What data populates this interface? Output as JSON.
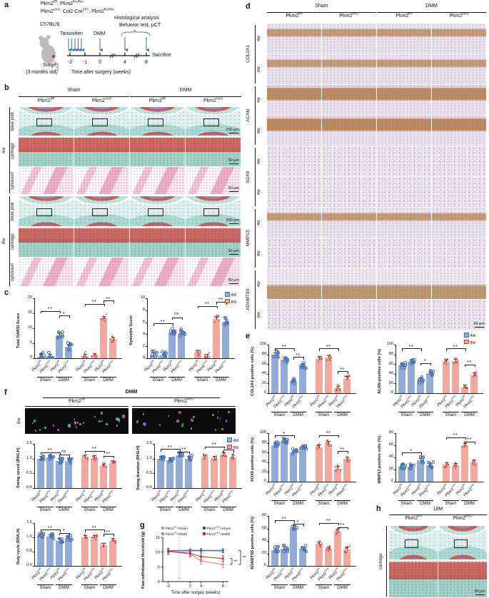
{
  "colors": {
    "blue_fill": "#93abd7",
    "blue_pt": "#4a72b8",
    "red_fill": "#f2a79f",
    "red_pt": "#d93a30",
    "arrow_blue": "#4a74b8",
    "series_flfl_sham": "#7fa8dc",
    "series_icko_sham": "#2f54a0",
    "series_flfl_dmm": "#e8736b",
    "series_icko_dmm": "#c1272d"
  },
  "legend": {
    "w4": "4W",
    "w8": "8W"
  },
  "bar_xlabels": [
    "Pkm2^fl/fl",
    "Pkm2^icKO",
    "Pkm2^fl/fl",
    "Pkm2^icKO",
    "Pkm2^fl/fl",
    "Pkm2^icKO",
    "Pkm2^fl/fl",
    "Pkm2^icKO"
  ],
  "bar_groups": [
    {
      "t": "Sham",
      "a": 0,
      "b": 1
    },
    {
      "t": "DMM",
      "a": 2,
      "b": 3
    },
    {
      "t": "Sham",
      "a": 4,
      "b": 5
    },
    {
      "t": "DMM",
      "a": 6,
      "b": 7
    }
  ],
  "panels": {
    "a": {
      "label": "a",
      "line1": "Pkm2^fl/fl^: Pkm2^flox/flox",
      "line2": "Pkm2^icKO^: Col2-Cre^ERT^; Pkm2^flox/flox",
      "strain": "C57BL/6",
      "tamoxifen": "Tamoxifen",
      "dmm": "DMM",
      "hist": "Histological analysis",
      "behavior": "Behavior test, μCT",
      "sacrifice": "Sacrifice",
      "surgery": "Surgey",
      "age": "(3 months old)",
      "axis": "Time after surgery (weeks)",
      "ticks": [
        "-2",
        "-1",
        "0",
        "4",
        "8"
      ]
    },
    "b": {
      "label": "b",
      "groups": [
        "Sham",
        "DMM"
      ],
      "cols": [
        "Pkm2^fl/fl",
        "Pkm2^icKO",
        "Pkm2^fl/fl",
        "Pkm2^icKO"
      ],
      "times": [
        "4w",
        "8w"
      ],
      "rows": [
        "knee joint",
        "cartilage",
        "synovium"
      ],
      "scales": [
        "250 μm",
        "50 μm",
        "50 μm"
      ]
    },
    "c": {
      "label": "c"
    },
    "d": {
      "label": "d",
      "groups": [
        "Sham",
        "DMM"
      ],
      "cols": [
        "Pkm2^fl/fl",
        "Pkm2^icKO",
        "Pkm2^fl/fl",
        "Pkm2^icKO"
      ],
      "markers": [
        "COL2A1",
        "ACAN",
        "SOX9",
        "MMP13",
        "ADAMTS5"
      ],
      "times": [
        "4w",
        "8w"
      ],
      "scale": "50 μm"
    },
    "e": {
      "label": "e"
    },
    "f": {
      "label": "f",
      "header": "DMM",
      "cols": [
        "Pkm2^fl/fl",
        "Pkm2^icKO"
      ],
      "time": "8w"
    },
    "g": {
      "label": "g",
      "dmm": "DMM"
    },
    "h": {
      "label": "h",
      "header": "18M",
      "cols": [
        "Pkm2^fl/fl",
        "Pkm2^icKO"
      ],
      "row": "cartilage",
      "scale": "50 μm"
    }
  },
  "chart_data": [
    {
      "type": "bar",
      "ylabel": "Total OARSI Score",
      "ylim": [
        0,
        20
      ],
      "yticks": [
        "0",
        "5",
        "10",
        "15",
        "20"
      ],
      "values": [
        0.5,
        0.6,
        7.7,
        3.8,
        0.7,
        0.9,
        13.3,
        6.4
      ],
      "colors": [
        "b",
        "b",
        "b",
        "b",
        "r",
        "r",
        "r",
        "r"
      ],
      "sig": [
        {
          "a": 0,
          "b": 2,
          "t": "**",
          "y": 15.8
        },
        {
          "a": 2,
          "b": 3,
          "t": "*",
          "y": 14.2
        },
        {
          "a": 4,
          "b": 6,
          "t": "**",
          "y": 18.2
        },
        {
          "a": 6,
          "b": 7,
          "t": "**",
          "y": 19.2
        }
      ]
    },
    {
      "type": "bar",
      "ylabel": "Synovitis Score",
      "ylim": [
        0,
        10
      ],
      "yticks": [
        "0",
        "2",
        "4",
        "6",
        "8",
        "10"
      ],
      "values": [
        0.5,
        0.5,
        4.3,
        4.2,
        0.9,
        0.3,
        6.5,
        6.1
      ],
      "colors": [
        "b",
        "b",
        "b",
        "b",
        "r",
        "r",
        "r",
        "b"
      ],
      "sig": [
        {
          "a": 0,
          "b": 2,
          "t": "**",
          "y": 5.8
        },
        {
          "a": 2,
          "b": 3,
          "t": "ns",
          "y": 6.8
        },
        {
          "a": 4,
          "b": 6,
          "t": "**",
          "y": 8.7
        },
        {
          "a": 6,
          "b": 7,
          "t": "ns",
          "y": 9.4
        }
      ]
    },
    {
      "type": "bar",
      "ylabel": "Swing speed (RH/LH)",
      "ylim": [
        0,
        1.5
      ],
      "yticks": [
        "0.0",
        "0.5",
        "1.0",
        "1.5"
      ],
      "values": [
        1.0,
        1.05,
        0.92,
        0.93,
        1.05,
        1.02,
        0.75,
        0.85
      ],
      "colors": [
        "b",
        "b",
        "b",
        "b",
        "r",
        "r",
        "r",
        "r"
      ],
      "sig": [
        {
          "a": 0,
          "b": 2,
          "t": "**",
          "y": 1.22
        },
        {
          "a": 2,
          "b": 3,
          "t": "ns",
          "y": 1.13
        },
        {
          "a": 4,
          "b": 6,
          "t": "**",
          "y": 1.27
        },
        {
          "a": 6,
          "b": 7,
          "t": "**",
          "y": 1.1
        }
      ]
    },
    {
      "type": "bar",
      "ylabel": "Swing duration (RH/LH)",
      "ylim": [
        0,
        1.5
      ],
      "yticks": [
        "0.0",
        "0.5",
        "1.0",
        "1.5"
      ],
      "values": [
        1.0,
        0.95,
        1.12,
        1.0,
        1.05,
        1.0,
        1.13,
        1.05
      ],
      "colors": [
        "b",
        "b",
        "b",
        "b",
        "r",
        "r",
        "r",
        "r"
      ],
      "sig": [
        {
          "a": 0,
          "b": 2,
          "t": "**",
          "y": 1.32
        },
        {
          "a": 2,
          "b": 3,
          "t": "**",
          "y": 1.24
        },
        {
          "a": 4,
          "b": 6,
          "t": "**",
          "y": 1.41
        },
        {
          "a": 6,
          "b": 7,
          "t": "*",
          "y": 1.3
        }
      ]
    },
    {
      "type": "bar",
      "ylabel": "Duty cycle (RH/LH)",
      "ylim": [
        0,
        1.5
      ],
      "yticks": [
        "0.0",
        "0.5",
        "1.0",
        "1.5"
      ],
      "values": [
        1.05,
        1.02,
        0.88,
        0.97,
        1.0,
        0.99,
        0.72,
        0.88
      ],
      "colors": [
        "b",
        "b",
        "b",
        "b",
        "r",
        "r",
        "r",
        "r"
      ],
      "sig": [
        {
          "a": 0,
          "b": 2,
          "t": "**",
          "y": 1.27
        },
        {
          "a": 2,
          "b": 3,
          "t": "*",
          "y": 1.16
        },
        {
          "a": 4,
          "b": 6,
          "t": "**",
          "y": 1.27
        },
        {
          "a": 6,
          "b": 7,
          "t": "**",
          "y": 1.12
        }
      ]
    },
    {
      "type": "bar",
      "ylabel": "COL2A1 positive cells (%)",
      "ylim": [
        0,
        100
      ],
      "yticks": [
        "0",
        "20",
        "40",
        "60",
        "80",
        "100"
      ],
      "values": [
        79,
        69,
        24,
        57,
        71,
        73,
        10,
        30
      ],
      "colors": [
        "b",
        "b",
        "b",
        "b",
        "r",
        "r",
        "r",
        "r"
      ],
      "sig": [
        {
          "a": 0,
          "b": 2,
          "t": "**",
          "y": 92
        },
        {
          "a": 2,
          "b": 3,
          "t": "**",
          "y": 75
        },
        {
          "a": 4,
          "b": 6,
          "t": "**",
          "y": 92
        },
        {
          "a": 6,
          "b": 7,
          "t": "**",
          "y": 45
        }
      ]
    },
    {
      "type": "bar",
      "ylabel": "ACAN positive cells (%)",
      "ylim": [
        0,
        100
      ],
      "yticks": [
        "0",
        "20",
        "40",
        "60",
        "80",
        "100"
      ],
      "values": [
        58,
        65,
        27,
        41,
        64,
        66,
        12,
        37
      ],
      "colors": [
        "b",
        "b",
        "b",
        "b",
        "r",
        "r",
        "r",
        "r"
      ],
      "sig": [
        {
          "a": 0,
          "b": 2,
          "t": "**",
          "y": 92
        },
        {
          "a": 2,
          "b": 3,
          "t": "*",
          "y": 62
        },
        {
          "a": 4,
          "b": 6,
          "t": "**",
          "y": 92
        },
        {
          "a": 6,
          "b": 7,
          "t": "**",
          "y": 59
        }
      ]
    },
    {
      "type": "bar",
      "ylabel": "SOX9 positive cells (%)",
      "ylim": [
        0,
        100
      ],
      "yticks": [
        "0",
        "20",
        "40",
        "60",
        "80",
        "100"
      ],
      "values": [
        75,
        84,
        60,
        72,
        71,
        78,
        27,
        47
      ],
      "colors": [
        "b",
        "b",
        "b",
        "b",
        "r",
        "r",
        "r",
        "r"
      ],
      "sig": [
        {
          "a": 0,
          "b": 2,
          "t": "*",
          "y": 95
        },
        {
          "a": 4,
          "b": 6,
          "t": "**",
          "y": 96
        },
        {
          "a": 6,
          "b": 7,
          "t": "**",
          "y": 63
        }
      ]
    },
    {
      "type": "bar",
      "ylabel": "MMP13 positive cells (%)",
      "ylim": [
        0,
        80
      ],
      "yticks": [
        "0",
        "20",
        "40",
        "60",
        "80"
      ],
      "values": [
        25,
        24,
        35,
        27,
        28,
        26,
        60,
        32
      ],
      "colors": [
        "b",
        "b",
        "b",
        "b",
        "r",
        "r",
        "r",
        "r"
      ],
      "sig": [
        {
          "a": 0,
          "b": 2,
          "t": "*",
          "y": 48
        },
        {
          "a": 4,
          "b": 6,
          "t": "**",
          "y": 73
        },
        {
          "a": 6,
          "b": 7,
          "t": "**",
          "y": 66
        }
      ]
    },
    {
      "type": "bar",
      "ylabel": "ADAMTS5 positive cells (%)",
      "ylim": [
        0,
        80
      ],
      "yticks": [
        "0",
        "20",
        "40",
        "60",
        "80"
      ],
      "values": [
        25,
        28,
        61,
        27,
        35,
        27,
        55,
        26
      ],
      "colors": [
        "b",
        "b",
        "b",
        "b",
        "r",
        "r",
        "r",
        "r"
      ],
      "sig": [
        {
          "a": 0,
          "b": 2,
          "t": "**",
          "y": 73
        },
        {
          "a": 2,
          "b": 3,
          "t": "*",
          "y": 67
        },
        {
          "a": 4,
          "b": 6,
          "t": "**",
          "y": 69
        },
        {
          "a": 6,
          "b": 7,
          "t": "**",
          "y": 62
        }
      ]
    },
    {
      "type": "line",
      "ylabel": "Paw withdrawal threshold (g)",
      "xlabel": "Time after  surgey (weeks)",
      "ylim": [
        0,
        15
      ],
      "yticks": [
        "0",
        "5",
        "10",
        "15"
      ],
      "x": [
        -2,
        2,
        4,
        8
      ],
      "xticks": [
        "-2",
        "2",
        "4",
        "8"
      ],
      "series": [
        {
          "name": "Pkm2^fl/fl^+Sham",
          "color": "#7fa8dc",
          "values": [
            10.4,
            10.7,
            10.6,
            10.6
          ],
          "err": 0.7
        },
        {
          "name": "Pkm2^icKO^+Sham",
          "color": "#2f54a0",
          "values": [
            10.5,
            10.4,
            10.5,
            10.4
          ],
          "err": 0.6
        },
        {
          "name": "Pkm2^fl/fl^+DMM",
          "color": "#e8736b",
          "values": [
            10.2,
            9.4,
            7.0,
            5.8
          ],
          "err": 1.1
        },
        {
          "name": "Pkm2^icKO^+DMM",
          "color": "#c1272d",
          "values": [
            10.3,
            9.6,
            8.5,
            7.8
          ],
          "err": 1.0
        }
      ],
      "dmm_x": 0,
      "sig": [
        "**",
        "**"
      ]
    }
  ]
}
